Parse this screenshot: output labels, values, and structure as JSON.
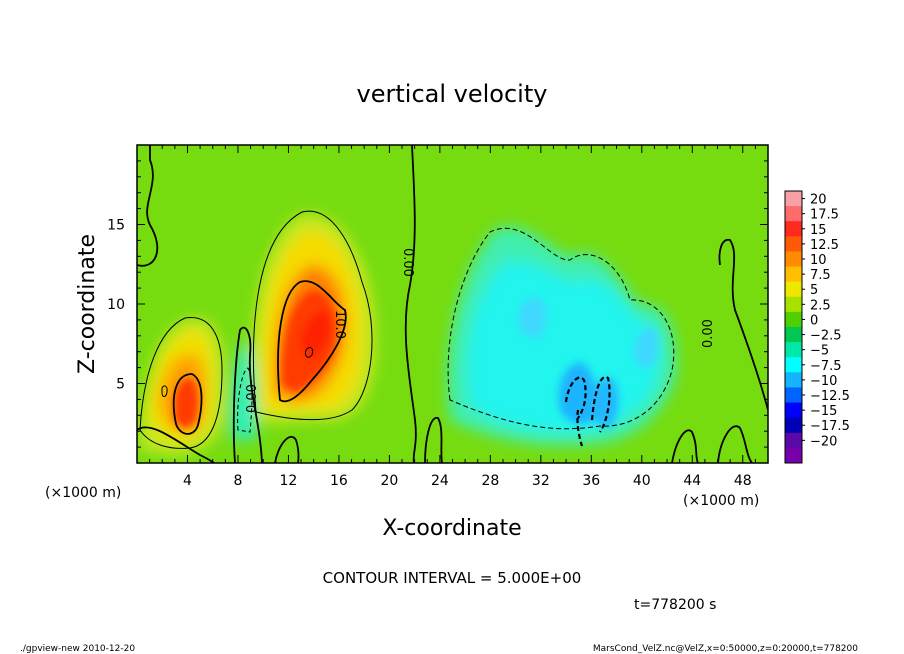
{
  "chart_data": {
    "type": "heatmap",
    "title": "vertical velocity",
    "xlabel": "X-coordinate",
    "ylabel": "Z-coordinate",
    "x_unit": "(×1000 m)",
    "z_unit": "(×1000 m)",
    "xlim": [
      0,
      50
    ],
    "ylim": [
      0,
      20
    ],
    "x_ticks": [
      4,
      8,
      12,
      16,
      20,
      24,
      28,
      32,
      36,
      40,
      44,
      48
    ],
    "y_ticks": [
      5,
      10,
      15
    ],
    "colorbar": {
      "labels": [
        "20",
        "17.5",
        "15",
        "12.5",
        "10",
        "7.5",
        "5",
        "2.5",
        "0",
        "−2.5",
        "−5",
        "−7.5",
        "−10",
        "−12.5",
        "−15",
        "−17.5",
        "−20"
      ],
      "colors": [
        "#f8a0a4",
        "#ff6b6b",
        "#ff2a1e",
        "#ff5a0a",
        "#ff8c00",
        "#ffbe00",
        "#eee800",
        "#a8e000",
        "#50d000",
        "#00c850",
        "#00e8a8",
        "#00ffff",
        "#14b4ff",
        "#0064ff",
        "#0000ff",
        "#0000b4",
        "#5a0aa8",
        "#7800aa"
      ]
    },
    "contour_labels": [
      "0.00",
      "10.0",
      "0.00",
      "0.00",
      "0.00"
    ],
    "contour_interval_text": "CONTOUR INTERVAL = 5.000E+00",
    "time_text": "t=778200  s",
    "features": [
      {
        "kind": "updraft",
        "x": 4.0,
        "z": 4.5,
        "peak": 12.5
      },
      {
        "kind": "updraft",
        "x": 13.5,
        "z": 8.0,
        "peak": 13.5
      },
      {
        "kind": "downdraft",
        "x": 36.0,
        "z": 5.0,
        "peak": -7.5
      }
    ]
  },
  "footer": {
    "left": "./gpview-new   2010-12-20",
    "right": "MarsCond_VelZ.nc@VelZ,x=0:50000,z=0:20000,t=778200"
  }
}
